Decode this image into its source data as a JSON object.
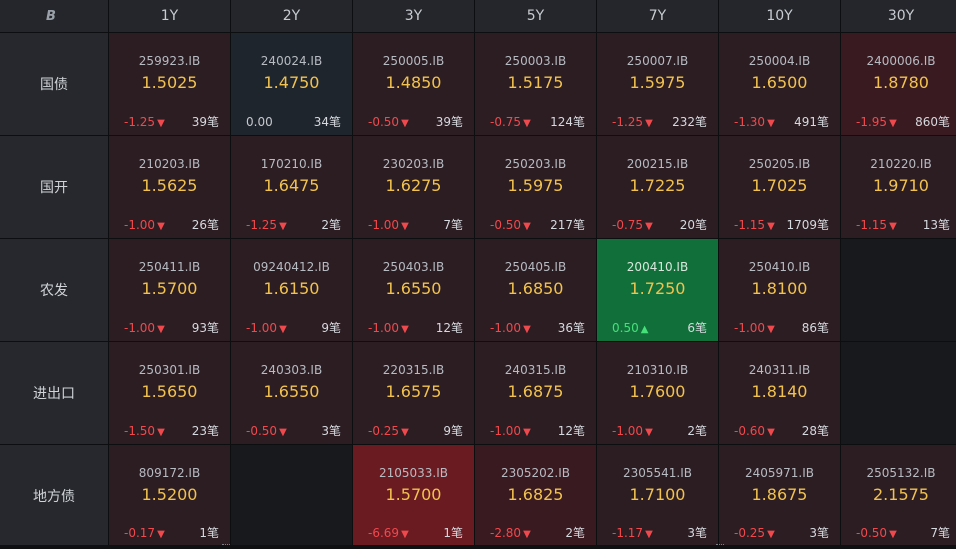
{
  "logo_text": "B",
  "columns": [
    "1Y",
    "2Y",
    "3Y",
    "5Y",
    "7Y",
    "10Y",
    "30Y"
  ],
  "rows": [
    {
      "label": "国债",
      "cells": [
        {
          "code": "259923.IB",
          "yield": "1.5025",
          "change": "-1.25",
          "dir": "down",
          "count": "39笔",
          "shade": "dark"
        },
        {
          "code": "240024.IB",
          "yield": "1.4750",
          "change": "0.00",
          "dir": "flat",
          "count": "34笔",
          "shade": "flat"
        },
        {
          "code": "250005.IB",
          "yield": "1.4850",
          "change": "-0.50",
          "dir": "down",
          "count": "39笔",
          "shade": "dark"
        },
        {
          "code": "250003.IB",
          "yield": "1.5175",
          "change": "-0.75",
          "dir": "down",
          "count": "124笔",
          "shade": "dark"
        },
        {
          "code": "250007.IB",
          "yield": "1.5975",
          "change": "-1.25",
          "dir": "down",
          "count": "232笔",
          "shade": "dark"
        },
        {
          "code": "250004.IB",
          "yield": "1.6500",
          "change": "-1.30",
          "dir": "down",
          "count": "491笔",
          "shade": "dark"
        },
        {
          "code": "2400006.IB",
          "yield": "1.8780",
          "change": "-1.95",
          "dir": "down",
          "count": "860笔",
          "shade": "mid"
        }
      ]
    },
    {
      "label": "国开",
      "cells": [
        {
          "code": "210203.IB",
          "yield": "1.5625",
          "change": "-1.00",
          "dir": "down",
          "count": "26笔",
          "shade": "dark"
        },
        {
          "code": "170210.IB",
          "yield": "1.6475",
          "change": "-1.25",
          "dir": "down",
          "count": "2笔",
          "shade": "dark"
        },
        {
          "code": "230203.IB",
          "yield": "1.6275",
          "change": "-1.00",
          "dir": "down",
          "count": "7笔",
          "shade": "dark"
        },
        {
          "code": "250203.IB",
          "yield": "1.5975",
          "change": "-0.50",
          "dir": "down",
          "count": "217笔",
          "shade": "dark"
        },
        {
          "code": "200215.IB",
          "yield": "1.7225",
          "change": "-0.75",
          "dir": "down",
          "count": "20笔",
          "shade": "dark"
        },
        {
          "code": "250205.IB",
          "yield": "1.7025",
          "change": "-1.15",
          "dir": "down",
          "count": "1709笔",
          "shade": "dark"
        },
        {
          "code": "210220.IB",
          "yield": "1.9710",
          "change": "-1.15",
          "dir": "down",
          "count": "13笔",
          "shade": "dark"
        }
      ]
    },
    {
      "label": "农发",
      "cells": [
        {
          "code": "250411.IB",
          "yield": "1.5700",
          "change": "-1.00",
          "dir": "down",
          "count": "93笔",
          "shade": "dark"
        },
        {
          "code": "09240412.IB",
          "yield": "1.6150",
          "change": "-1.00",
          "dir": "down",
          "count": "9笔",
          "shade": "dark"
        },
        {
          "code": "250403.IB",
          "yield": "1.6550",
          "change": "-1.00",
          "dir": "down",
          "count": "12笔",
          "shade": "dark"
        },
        {
          "code": "250405.IB",
          "yield": "1.6850",
          "change": "-1.00",
          "dir": "down",
          "count": "36笔",
          "shade": "dark"
        },
        {
          "code": "200410.IB",
          "yield": "1.7250",
          "change": "0.50",
          "dir": "up",
          "count": "6笔",
          "shade": "green"
        },
        {
          "code": "250410.IB",
          "yield": "1.8100",
          "change": "-1.00",
          "dir": "down",
          "count": "86笔",
          "shade": "dark"
        },
        null
      ]
    },
    {
      "label": "进出口",
      "cells": [
        {
          "code": "250301.IB",
          "yield": "1.5650",
          "change": "-1.50",
          "dir": "down",
          "count": "23笔",
          "shade": "dark"
        },
        {
          "code": "240303.IB",
          "yield": "1.6550",
          "change": "-0.50",
          "dir": "down",
          "count": "3笔",
          "shade": "dark"
        },
        {
          "code": "220315.IB",
          "yield": "1.6575",
          "change": "-0.25",
          "dir": "down",
          "count": "9笔",
          "shade": "dark"
        },
        {
          "code": "240315.IB",
          "yield": "1.6875",
          "change": "-1.00",
          "dir": "down",
          "count": "12笔",
          "shade": "dark"
        },
        {
          "code": "210310.IB",
          "yield": "1.7600",
          "change": "-1.00",
          "dir": "down",
          "count": "2笔",
          "shade": "dark"
        },
        {
          "code": "240311.IB",
          "yield": "1.8140",
          "change": "-0.60",
          "dir": "down",
          "count": "28笔",
          "shade": "dark"
        },
        null
      ]
    },
    {
      "label": "地方债",
      "cells": [
        {
          "code": "809172.IB",
          "yield": "1.5200",
          "change": "-0.17",
          "dir": "down",
          "count": "1笔",
          "shade": "dark"
        },
        null,
        {
          "code": "2105033.IB",
          "yield": "1.5700",
          "change": "-6.69",
          "dir": "down",
          "count": "1笔",
          "shade": "red"
        },
        {
          "code": "2305202.IB",
          "yield": "1.6825",
          "change": "-2.80",
          "dir": "down",
          "count": "2笔",
          "shade": "mid"
        },
        {
          "code": "2305541.IB",
          "yield": "1.7100",
          "change": "-1.17",
          "dir": "down",
          "count": "3笔",
          "shade": "dark"
        },
        {
          "code": "2405971.IB",
          "yield": "1.8675",
          "change": "-0.25",
          "dir": "down",
          "count": "3笔",
          "shade": "dark"
        },
        {
          "code": "2505132.IB",
          "yield": "2.1575",
          "change": "-0.50",
          "dir": "down",
          "count": "7笔",
          "shade": "dark"
        }
      ]
    }
  ],
  "colors": {
    "yield": "#f2c24e",
    "down": "#f0494d",
    "up": "#46e07a",
    "green_cell": "#11703a",
    "red_cell": "#6a1a21"
  }
}
